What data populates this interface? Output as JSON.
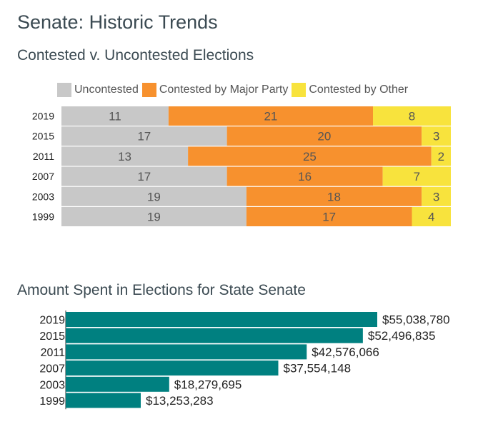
{
  "page": {
    "title": "Senate: Historic Trends"
  },
  "colors": {
    "uncontested": "#c8c8c8",
    "major": "#f7912e",
    "other": "#f8e33d",
    "spent": "#008080",
    "axis": "#333333"
  },
  "chart_data": [
    {
      "type": "bar",
      "orientation": "horizontal",
      "stacked": true,
      "title": "Contested v. Uncontested Elections",
      "categories": [
        "2019",
        "2015",
        "2011",
        "2007",
        "2003",
        "1999"
      ],
      "series": [
        {
          "name": "Uncontested",
          "color_key": "uncontested",
          "values": [
            11,
            17,
            13,
            17,
            19,
            19
          ]
        },
        {
          "name": "Contested by Major Party",
          "color_key": "major",
          "values": [
            21,
            20,
            25,
            16,
            18,
            17
          ]
        },
        {
          "name": "Contested by Other",
          "color_key": "other",
          "values": [
            8,
            3,
            2,
            7,
            3,
            4
          ]
        }
      ],
      "legend": "top",
      "grid": false
    },
    {
      "type": "bar",
      "orientation": "horizontal",
      "title": "Amount Spent in Elections for State Senate",
      "categories": [
        "2019",
        "2015",
        "2011",
        "2007",
        "2003",
        "1999"
      ],
      "values": [
        55038780,
        52496835,
        42576066,
        37554148,
        18279695,
        13253283
      ],
      "value_labels": [
        "$55,038,780",
        "$52,496,835",
        "$42,576,066",
        "$37,554,148",
        "$18,279,695",
        "$13,253,283"
      ],
      "xlim": [
        0,
        60000000
      ],
      "grid": false
    }
  ]
}
